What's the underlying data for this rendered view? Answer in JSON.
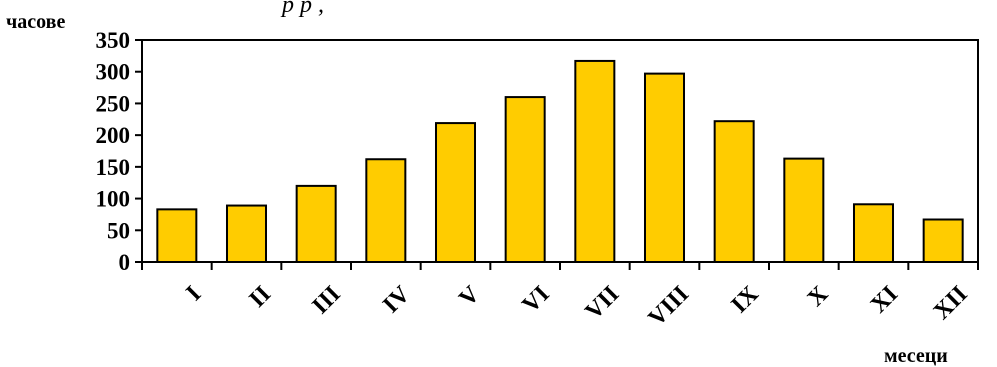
{
  "chart_data": {
    "type": "bar",
    "title_fragment": "р                         р      ,",
    "ylabel": "часове",
    "xlabel": "месеци",
    "categories": [
      "I",
      "II",
      "III",
      "IV",
      "V",
      "VI",
      "VII",
      "VIII",
      "IX",
      "X",
      "XI",
      "XII"
    ],
    "values": [
      83,
      89,
      120,
      162,
      219,
      260,
      317,
      297,
      222,
      163,
      91,
      67
    ],
    "ylim": [
      0,
      350
    ],
    "yticks": [
      0,
      50,
      100,
      150,
      200,
      250,
      300,
      350
    ],
    "yticks_labels": [
      "0",
      "50",
      "100",
      "150",
      "200",
      "250",
      "300",
      "350"
    ],
    "grid": false,
    "legend": false,
    "bar_color": "#FFCC00",
    "bar_edge_color": "#000000"
  }
}
